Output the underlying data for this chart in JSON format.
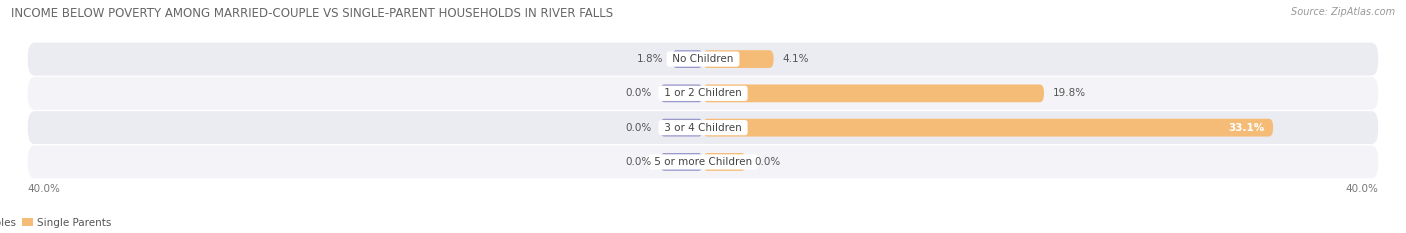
{
  "title": "INCOME BELOW POVERTY AMONG MARRIED-COUPLE VS SINGLE-PARENT HOUSEHOLDS IN RIVER FALLS",
  "source": "Source: ZipAtlas.com",
  "categories": [
    "No Children",
    "1 or 2 Children",
    "3 or 4 Children",
    "5 or more Children"
  ],
  "married_values": [
    1.8,
    0.0,
    0.0,
    0.0
  ],
  "single_values": [
    4.1,
    19.8,
    33.1,
    0.0
  ],
  "max_val": 40.0,
  "married_color": "#9999cc",
  "single_color": "#f5bc78",
  "row_bg_odd": "#ebebf2",
  "row_bg_even": "#f4f4f8",
  "title_fontsize": 8.5,
  "label_fontsize": 7.5,
  "tick_fontsize": 7.5,
  "source_fontsize": 7,
  "legend_fontsize": 7.5,
  "axis_label_left": "40.0%",
  "axis_label_right": "40.0%",
  "min_bar_val": 2.5,
  "stub_bar_val": 2.5
}
